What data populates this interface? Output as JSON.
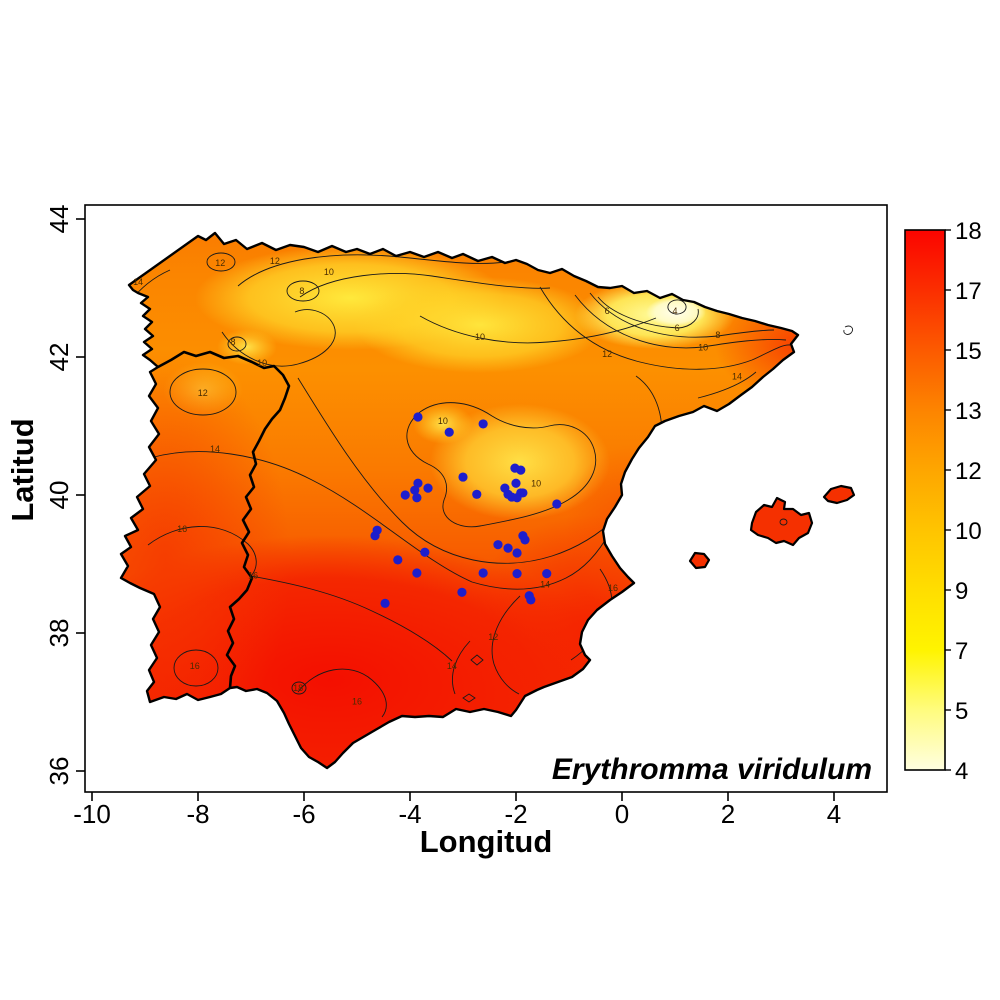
{
  "figure": {
    "xlabel": "Longitud",
    "ylabel": "Latitud",
    "species_label": "Erythromma viridulum",
    "x_ticks": [
      -10,
      -8,
      -6,
      -4,
      -2,
      0,
      2,
      4
    ],
    "y_ticks": [
      44,
      42,
      40,
      38,
      36
    ],
    "xlim": [
      -10.15,
      5.0
    ],
    "ylim": [
      35.7,
      44.2
    ]
  },
  "colorbar": {
    "min": 4,
    "max": 18,
    "ticks": [
      18,
      17,
      15,
      13,
      12,
      10,
      9,
      7,
      5,
      4
    ],
    "stops": [
      {
        "value": 18,
        "color": "#fb0400"
      },
      {
        "value": 17,
        "color": "#fb2e00"
      },
      {
        "value": 15,
        "color": "#fc5a00"
      },
      {
        "value": 13,
        "color": "#fd8400"
      },
      {
        "value": 12,
        "color": "#fea600"
      },
      {
        "value": 10,
        "color": "#ffc400"
      },
      {
        "value": 9,
        "color": "#ffde00"
      },
      {
        "value": 7,
        "color": "#fff400"
      },
      {
        "value": 5,
        "color": "#fffc7e"
      },
      {
        "value": 4,
        "color": "#fffee0"
      }
    ]
  },
  "map": {
    "region": "Iberian Peninsula",
    "contour_levels": [
      4,
      6,
      8,
      10,
      12,
      14,
      16,
      18
    ],
    "contour_labels": [
      {
        "v": 12,
        "lon": -7.58,
        "lat": 43.36
      },
      {
        "v": 12,
        "lon": -6.55,
        "lat": 43.39
      },
      {
        "v": 10,
        "lon": -5.53,
        "lat": 43.23
      },
      {
        "v": 8,
        "lon": -6.04,
        "lat": 42.96
      },
      {
        "v": 14,
        "lon": -9.13,
        "lat": 43.09
      },
      {
        "v": 8,
        "lon": -7.34,
        "lat": 42.22
      },
      {
        "v": 10,
        "lon": -6.79,
        "lat": 41.91
      },
      {
        "v": 12,
        "lon": -7.91,
        "lat": 41.48
      },
      {
        "v": 10,
        "lon": -2.68,
        "lat": 42.29
      },
      {
        "v": 6,
        "lon": -0.28,
        "lat": 42.67
      },
      {
        "v": 4,
        "lon": 1.0,
        "lat": 42.67
      },
      {
        "v": 6,
        "lon": 1.04,
        "lat": 42.42
      },
      {
        "v": 8,
        "lon": 1.81,
        "lat": 42.32
      },
      {
        "v": 10,
        "lon": 1.53,
        "lat": 42.14
      },
      {
        "v": 12,
        "lon": -0.28,
        "lat": 42.04
      },
      {
        "v": 14,
        "lon": 2.17,
        "lat": 41.72
      },
      {
        "v": 10,
        "lon": -3.38,
        "lat": 41.07
      },
      {
        "v": 10,
        "lon": -1.62,
        "lat": 40.17
      },
      {
        "v": 14,
        "lon": -7.68,
        "lat": 40.67
      },
      {
        "v": 16,
        "lon": -8.3,
        "lat": 39.51
      },
      {
        "v": 16,
        "lon": -6.96,
        "lat": 38.83
      },
      {
        "v": 16,
        "lon": -8.06,
        "lat": 37.52
      },
      {
        "v": 18,
        "lon": -6.11,
        "lat": 37.2
      },
      {
        "v": 16,
        "lon": -5.0,
        "lat": 37.01
      },
      {
        "v": 14,
        "lon": -3.21,
        "lat": 37.52
      },
      {
        "v": 12,
        "lon": -2.43,
        "lat": 37.94
      },
      {
        "v": 14,
        "lon": -1.45,
        "lat": 38.7
      },
      {
        "v": 16,
        "lon": -0.17,
        "lat": 38.65
      }
    ]
  },
  "points": {
    "color": "#1e1ecc",
    "records": [
      [
        -3.85,
        41.13
      ],
      [
        -3.26,
        40.91
      ],
      [
        -2.62,
        41.03
      ],
      [
        -2.02,
        40.39
      ],
      [
        -1.91,
        40.36
      ],
      [
        -2.0,
        40.17
      ],
      [
        -2.21,
        40.1
      ],
      [
        -2.15,
        40.01
      ],
      [
        -2.08,
        39.97
      ],
      [
        -1.98,
        39.96
      ],
      [
        -1.91,
        40.03
      ],
      [
        -1.87,
        40.03
      ],
      [
        -3.0,
        40.26
      ],
      [
        -2.74,
        40.01
      ],
      [
        -3.85,
        40.17
      ],
      [
        -3.66,
        40.1
      ],
      [
        -3.91,
        40.07
      ],
      [
        -4.09,
        40.0
      ],
      [
        -3.87,
        39.96
      ],
      [
        -1.23,
        39.87
      ],
      [
        -4.62,
        39.49
      ],
      [
        -4.66,
        39.41
      ],
      [
        -4.23,
        39.06
      ],
      [
        -3.72,
        39.17
      ],
      [
        -3.87,
        38.87
      ],
      [
        -1.87,
        39.41
      ],
      [
        -1.83,
        39.35
      ],
      [
        -2.34,
        39.28
      ],
      [
        -2.15,
        39.23
      ],
      [
        -1.98,
        39.16
      ],
      [
        -2.62,
        38.87
      ],
      [
        -1.98,
        38.86
      ],
      [
        -1.42,
        38.86
      ],
      [
        -3.02,
        38.59
      ],
      [
        -1.75,
        38.54
      ],
      [
        -1.72,
        38.48
      ],
      [
        -4.47,
        38.43
      ]
    ]
  },
  "chart_data": {
    "type": "scatter",
    "title": "Erythromma viridulum",
    "xlabel": "Longitud",
    "ylabel": "Latitud",
    "xlim": [
      -10.15,
      5.0
    ],
    "ylim": [
      35.7,
      44.2
    ],
    "colorbar_range": [
      4,
      18
    ],
    "colorbar_ticks": [
      18,
      17,
      15,
      13,
      12,
      10,
      9,
      7,
      5,
      4
    ],
    "contour_levels": [
      4,
      6,
      8,
      10,
      12,
      14,
      16,
      18
    ],
    "series": [
      {
        "name": "occurrence-records",
        "marker_color": "#1e1ecc",
        "x": [
          -3.85,
          -3.26,
          -2.62,
          -2.02,
          -1.91,
          -2.0,
          -2.21,
          -2.15,
          -2.08,
          -1.98,
          -1.91,
          -1.87,
          -3.0,
          -2.74,
          -3.85,
          -3.66,
          -3.91,
          -4.09,
          -3.87,
          -1.23,
          -4.62,
          -4.66,
          -4.23,
          -3.72,
          -3.87,
          -1.87,
          -1.83,
          -2.34,
          -2.15,
          -1.98,
          -2.62,
          -1.98,
          -1.42,
          -3.02,
          -1.75,
          -1.72,
          -4.47
        ],
        "y": [
          41.13,
          40.91,
          41.03,
          40.39,
          40.36,
          40.17,
          40.1,
          40.01,
          39.97,
          39.96,
          40.03,
          40.03,
          40.26,
          40.01,
          40.17,
          40.1,
          40.07,
          40.0,
          39.96,
          39.87,
          39.49,
          39.41,
          39.06,
          39.17,
          38.87,
          39.41,
          39.35,
          39.28,
          39.23,
          39.16,
          38.87,
          38.86,
          38.86,
          38.59,
          38.54,
          38.48,
          38.43
        ]
      }
    ]
  }
}
